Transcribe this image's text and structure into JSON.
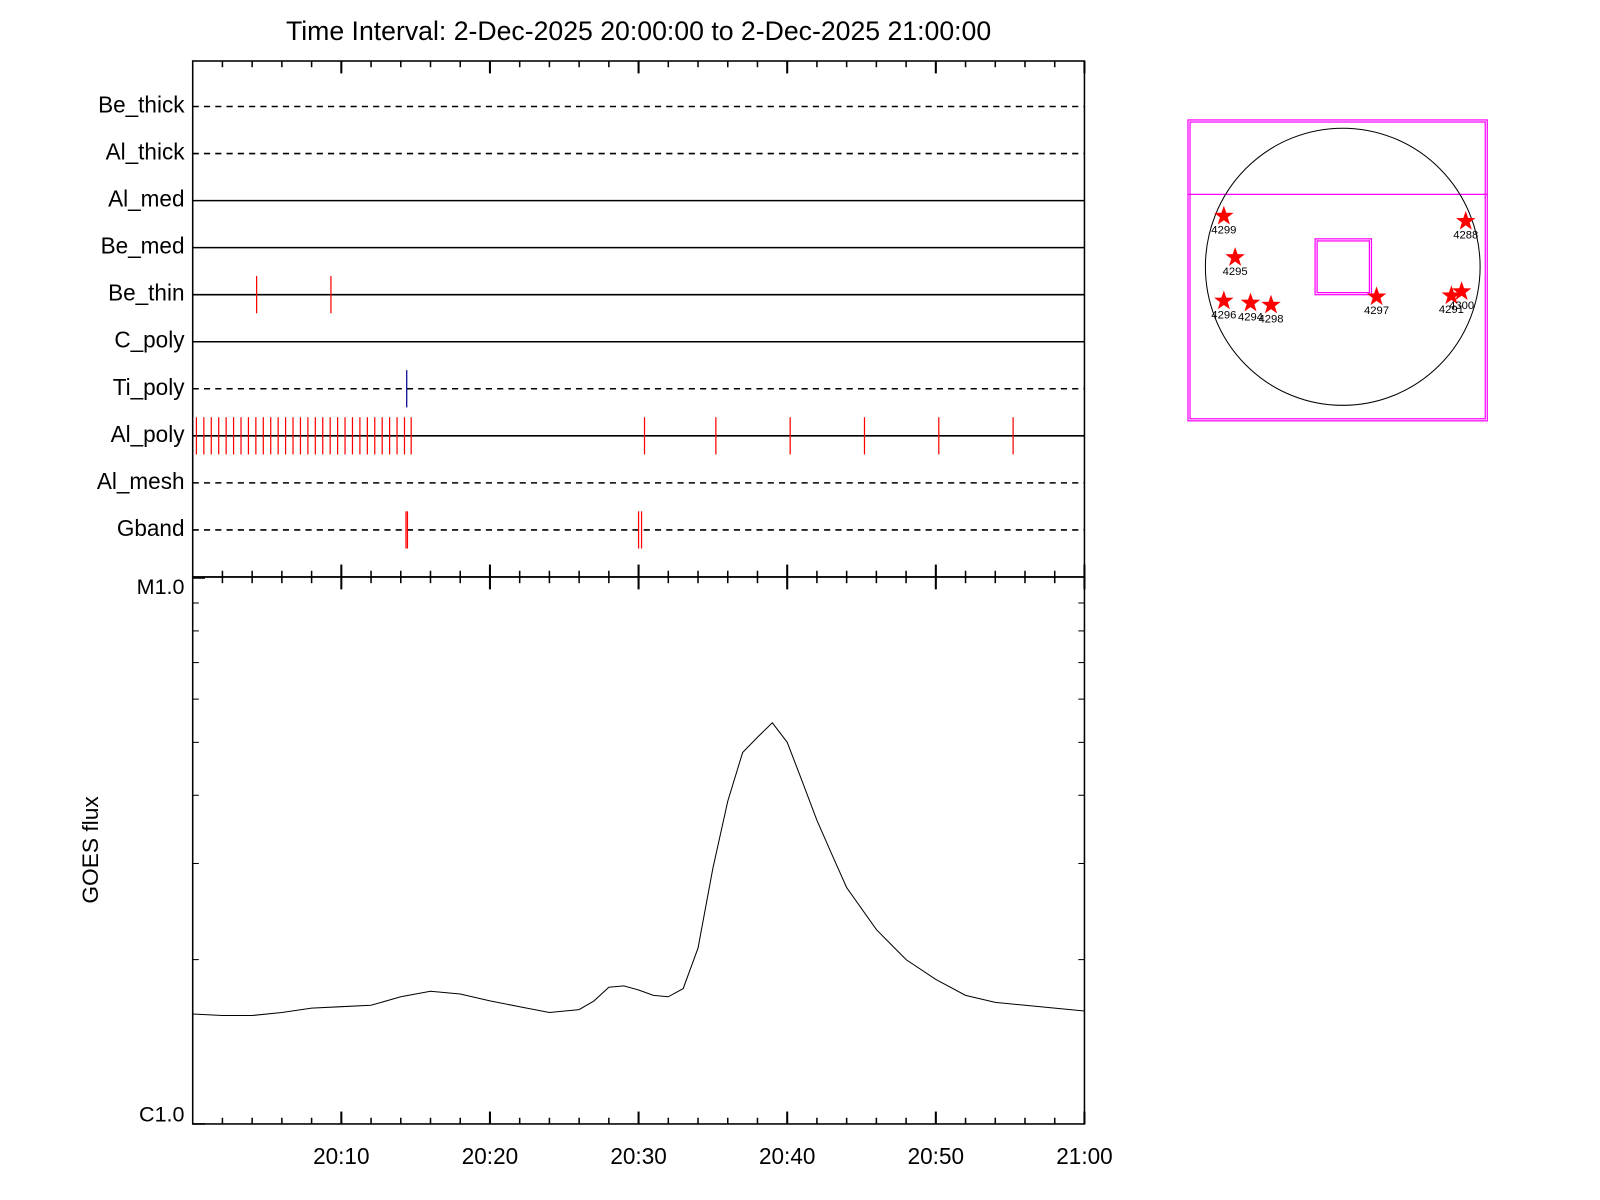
{
  "chart_data": [
    {
      "type": "timeline",
      "title": "Time Interval:  2-Dec-2025 20:00:00 to  2-Dec-2025 21:00:00",
      "xlim": [
        0,
        60
      ],
      "xticks": [
        {
          "value": 10,
          "label": "20:10"
        },
        {
          "value": 20,
          "label": "20:20"
        },
        {
          "value": 30,
          "label": "20:30"
        },
        {
          "value": 40,
          "label": "20:40"
        },
        {
          "value": 50,
          "label": "20:50"
        },
        {
          "value": 60,
          "label": "21:00"
        }
      ],
      "series": [
        {
          "name": "Be_thick",
          "line_style": "dashed",
          "color": "#ff0000",
          "x": []
        },
        {
          "name": "Al_thick",
          "line_style": "dashed",
          "color": "#ff0000",
          "x": []
        },
        {
          "name": "Al_med",
          "line_style": "solid",
          "color": "#ff0000",
          "x": []
        },
        {
          "name": "Be_med",
          "line_style": "solid",
          "color": "#ff0000",
          "x": []
        },
        {
          "name": "Be_thin",
          "line_style": "solid",
          "color": "#ff0000",
          "x": [
            4.3,
            9.3
          ]
        },
        {
          "name": "C_poly",
          "line_style": "solid",
          "color": "#ff0000",
          "x": []
        },
        {
          "name": "Ti_poly",
          "line_style": "dashed",
          "color": "#00008b",
          "x": [
            14.4
          ]
        },
        {
          "name": "Al_poly",
          "line_style": "solid",
          "color": "#ff0000",
          "x": [
            0.25,
            0.75,
            1.25,
            1.75,
            2.25,
            2.75,
            3.25,
            3.75,
            4.25,
            4.75,
            5.25,
            5.75,
            6.25,
            6.75,
            7.25,
            7.75,
            8.25,
            8.75,
            9.25,
            9.75,
            10.25,
            10.75,
            11.25,
            11.75,
            12.25,
            12.75,
            13.25,
            13.75,
            14.25,
            14.7,
            30.4,
            35.2,
            40.2,
            45.2,
            50.2,
            55.2
          ]
        },
        {
          "name": "Al_mesh",
          "line_style": "dashed",
          "color": "#ff0000",
          "x": []
        },
        {
          "name": "Gband",
          "line_style": "dashed",
          "color": "#ff0000",
          "x": [
            14.35,
            14.45,
            30.0,
            30.2
          ]
        }
      ]
    },
    {
      "type": "line",
      "ylabel": "GOES flux",
      "log_y": true,
      "color": "#000000",
      "xlim": [
        0,
        60
      ],
      "ylim": [
        1e-06,
        1e-05
      ],
      "yticks": [
        {
          "value": 1e-06,
          "label": "C1.0"
        },
        {
          "value": 1e-05,
          "label": "M1.0"
        }
      ],
      "x": [
        0,
        2,
        4,
        6,
        8,
        10,
        12,
        14,
        16,
        18,
        20,
        22,
        24,
        26,
        27,
        28,
        29,
        30,
        31,
        32,
        33,
        34,
        35,
        36,
        37,
        38,
        39,
        40,
        41,
        42,
        43,
        44,
        46,
        48,
        50,
        52,
        54,
        56,
        58,
        60
      ],
      "values": [
        1.59e-06,
        1.58e-06,
        1.58e-06,
        1.6e-06,
        1.63e-06,
        1.64e-06,
        1.65e-06,
        1.71e-06,
        1.75e-06,
        1.73e-06,
        1.68e-06,
        1.64e-06,
        1.6e-06,
        1.62e-06,
        1.68e-06,
        1.78e-06,
        1.79e-06,
        1.76e-06,
        1.72e-06,
        1.71e-06,
        1.77e-06,
        2.1e-06,
        2.94e-06,
        3.9e-06,
        4.79e-06,
        5.11e-06,
        5.43e-06,
        5e-06,
        4.25e-06,
        3.6e-06,
        3.12e-06,
        2.71e-06,
        2.27e-06,
        2e-06,
        1.84e-06,
        1.72e-06,
        1.67e-06,
        1.65e-06,
        1.63e-06,
        1.61e-06
      ]
    },
    {
      "type": "map",
      "regions": [
        "4299",
        "4288",
        "4295",
        "4296",
        "4294",
        "4298",
        "4297",
        "4291",
        "4300"
      ]
    }
  ]
}
